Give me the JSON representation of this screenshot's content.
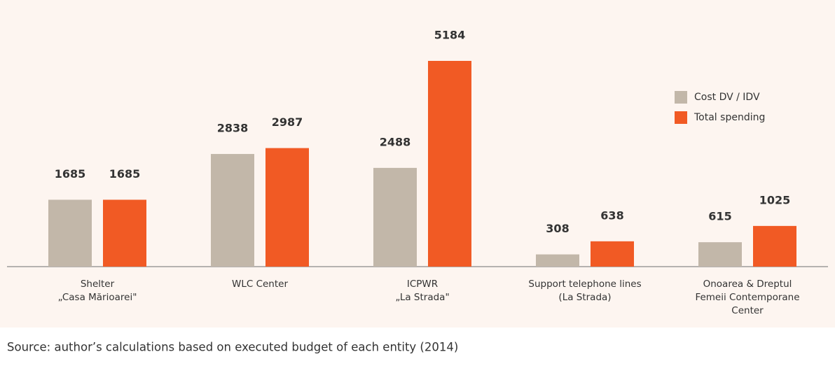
{
  "chart_data": {
    "type": "bar",
    "categories": [
      [
        "Shelter",
        "„Casa Mărioarei\""
      ],
      [
        "WLC Center"
      ],
      [
        "ICPWR",
        "„La Strada\""
      ],
      [
        "Support telephone lines",
        "(La Strada)"
      ],
      [
        "Onoarea & Dreptul",
        "Femeii Contemporane",
        "Center"
      ]
    ],
    "series": [
      {
        "name": "Cost DV / IDV",
        "color": "#c2b7a9",
        "values": [
          1685,
          2838,
          2488,
          308,
          615
        ]
      },
      {
        "name": "Total spending",
        "color": "#f15a24",
        "values": [
          1685,
          2987,
          5184,
          638,
          1025
        ]
      }
    ],
    "legend": "top-right",
    "source": "Source: author’s calculations based on executed budget of each entity (2014)"
  }
}
